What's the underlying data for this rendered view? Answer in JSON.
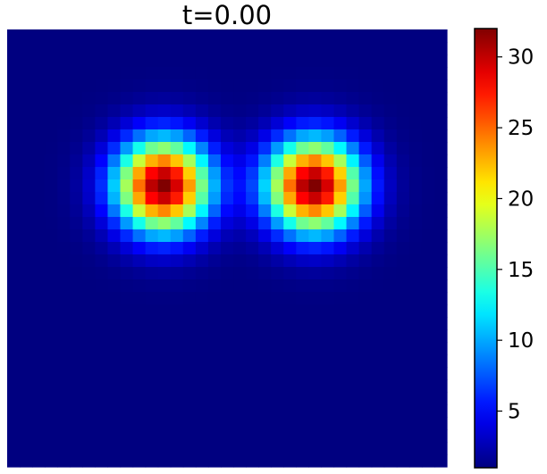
{
  "chart_data": {
    "type": "heatmap",
    "title": "t=0.00",
    "xlabel": "",
    "ylabel": "",
    "axes_visible": false,
    "grid": false,
    "colormap": "jet",
    "grid_size": [
      35,
      35
    ],
    "value_range": [
      1,
      32
    ],
    "background_value": 1,
    "peaks": [
      {
        "center_col": 11.9,
        "center_row": 12.0,
        "amplitude": 31,
        "sigma_cells": 2.6
      },
      {
        "center_col": 23.9,
        "center_row": 12.0,
        "amplitude": 31,
        "sigma_cells": 2.6
      }
    ],
    "colorbar": {
      "location": "right",
      "ticks": [
        5,
        10,
        15,
        20,
        25,
        30
      ],
      "tick_labels": [
        "5",
        "10",
        "15",
        "20",
        "25",
        "30"
      ]
    }
  }
}
